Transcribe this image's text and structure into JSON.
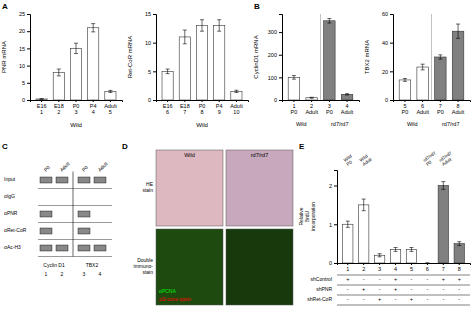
{
  "chart_data": [
    {
      "type": "bar",
      "title": "A",
      "categories": [
        "E16\n1",
        "E18\n2",
        "P0\n3",
        "P4\n4",
        "Adult\n5"
      ],
      "values": [
        0.3,
        8,
        15,
        21,
        2.5
      ],
      "errors": [
        0.1,
        1.0,
        1.5,
        1.2,
        0.3
      ],
      "color": "#ffffff",
      "ylabel": "PNR mRNA",
      "xlabel": "Wild",
      "ylim": [
        0,
        25
      ],
      "yticks": [
        0,
        5,
        10,
        15,
        20,
        25
      ]
    },
    {
      "type": "bar",
      "categories": [
        "E16\n6",
        "E18\n7",
        "P0\n8",
        "P4\n9",
        "Adult\n10"
      ],
      "values": [
        5,
        11,
        13,
        13,
        1.5
      ],
      "errors": [
        0.4,
        1.2,
        1.0,
        1.0,
        0.2
      ],
      "color": "#ffffff",
      "ylabel": "Ret-CoR mRNA",
      "xlabel": "Wild",
      "ylim": [
        0,
        15
      ],
      "yticks": [
        0,
        5,
        10,
        15
      ]
    },
    {
      "type": "bar",
      "title": "B",
      "categories": [
        "1\nP0",
        "2\nAdult",
        "3\nP0",
        "4\nAdult"
      ],
      "values": [
        100,
        10,
        350,
        25
      ],
      "errors": [
        8,
        2,
        10,
        3
      ],
      "colors": [
        "white",
        "white",
        "#808080",
        "#808080"
      ],
      "ylabel": "CyclinD1 mRNA",
      "ylim": [
        0,
        380
      ],
      "yticks": [
        0,
        100,
        200,
        300
      ],
      "annotations": [
        {
          "text": "Wild"
        },
        {
          "text": "rd7/rd7"
        }
      ]
    },
    {
      "type": "bar",
      "categories": [
        "5\nP0",
        "6\nAdult",
        "7\nP0",
        "8\nAdult"
      ],
      "values": [
        14,
        23,
        30,
        48
      ],
      "errors": [
        1,
        2,
        1.5,
        5
      ],
      "colors": [
        "white",
        "white",
        "#808080",
        "#808080"
      ],
      "ylabel": "TBX2 mRNA",
      "ylim": [
        0,
        60
      ],
      "yticks": [
        0,
        20,
        40,
        60
      ],
      "annotations": [
        {
          "text": "Wild"
        },
        {
          "text": "rd7/rd7"
        }
      ]
    },
    {
      "type": "blot",
      "title": "C",
      "categories": [
        "P0",
        "Adult",
        "P0",
        "Adult"
      ],
      "series": [
        {
          "name": "Input",
          "values": [
            true,
            true,
            true,
            true
          ]
        },
        {
          "name": "αIgG",
          "values": [
            false,
            false,
            false,
            false
          ]
        },
        {
          "name": "αPNR",
          "values": [
            true,
            false,
            true,
            false
          ]
        },
        {
          "name": "αRet-CoR",
          "values": [
            true,
            false,
            true,
            false
          ]
        },
        {
          "name": "αAc-H3",
          "values": [
            true,
            true,
            true,
            true
          ]
        }
      ],
      "color": "#888888",
      "groups": [
        "Cyclin D1",
        "TBX2"
      ],
      "lane_labels": [
        "1",
        "2",
        "3",
        "4"
      ]
    },
    {
      "type": "image_grid",
      "title": "D",
      "categories": [
        "Wild",
        "rd7/rd7"
      ],
      "series": [
        {
          "name": "HE\nstain",
          "colors": [
            "#ddb8c0",
            "#c8a8bc"
          ]
        },
        {
          "name": "Double\nimmuno-\nstain",
          "colors": [
            "#1e4a10",
            "#163a0c"
          ]
        }
      ],
      "annotations": [
        {
          "text": "αPCNA",
          "color": "#00ee00"
        },
        {
          "text": "αS-cone opsin",
          "color": "red"
        }
      ]
    },
    {
      "type": "bar",
      "title": "E",
      "categories": [
        "1",
        "2",
        "3",
        "4",
        "5",
        "6",
        "7",
        "8"
      ],
      "values": [
        1.0,
        1.5,
        0.2,
        0.35,
        0.35,
        0.0,
        2.0,
        0.5
      ],
      "errors": [
        0.08,
        0.15,
        0.04,
        0.05,
        0.05,
        0.0,
        0.1,
        0.05
      ],
      "colors": [
        "white",
        "white",
        "white",
        "white",
        "white",
        "#808080",
        "#808080",
        "#808080"
      ],
      "ylabel": "Relative\nBrdU\nincorporation",
      "ylim": [
        0,
        2.4
      ],
      "yticks": [
        0,
        1,
        2
      ],
      "annotations": [
        {
          "text": "Wild\nP0",
          "x": "1"
        },
        {
          "text": "Wild\nAdult",
          "x": "2"
        },
        {
          "text": "rd7/rd7\nP0",
          "x": "6"
        },
        {
          "text": "rd7/rd7\nAdult",
          "x": "7"
        }
      ],
      "table": [
        {
          "name": "shControl",
          "values": [
            "+",
            "-",
            "-",
            "+",
            "-",
            "-",
            "+",
            "+"
          ]
        },
        {
          "name": "shPNR",
          "values": [
            "-",
            "+",
            "-",
            "+",
            "-",
            "-",
            "-",
            "-"
          ]
        },
        {
          "name": "shRet-CoR",
          "values": [
            "-",
            "-",
            "+",
            "-",
            "+",
            "-",
            "-",
            "-"
          ]
        }
      ]
    }
  ]
}
